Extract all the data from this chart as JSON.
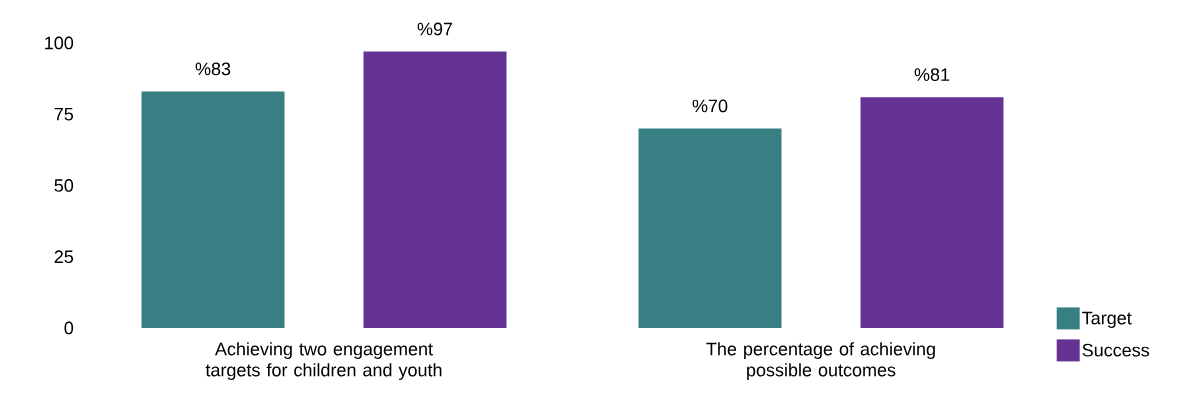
{
  "chart_data": {
    "type": "bar",
    "categories": [
      "Achieving two engagement targets for children and youth",
      "The percentage of achieving possible outcomes"
    ],
    "series": [
      {
        "name": "Target",
        "color": "#387f84",
        "values": [
          83,
          70
        ],
        "value_labels": [
          "%83",
          "%70"
        ]
      },
      {
        "name": "Success",
        "color": "#633293",
        "values": [
          97,
          81
        ],
        "value_labels": [
          "%97",
          "%81"
        ]
      }
    ],
    "ylim": [
      0,
      100
    ],
    "yticks": [
      0,
      25,
      50,
      75,
      100
    ],
    "grid": false,
    "legend": "bottom right"
  }
}
